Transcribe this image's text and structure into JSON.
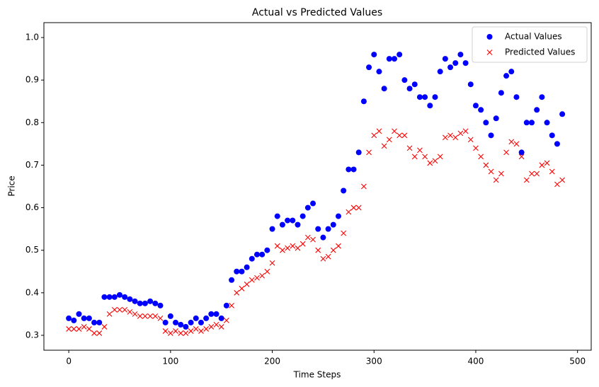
{
  "chart_data": {
    "type": "scatter",
    "title": "Actual vs Predicted Values",
    "x_label": "Time Steps",
    "y_label": "Price",
    "x": [
      0,
      5,
      10,
      15,
      20,
      25,
      30,
      35,
      40,
      45,
      50,
      55,
      60,
      65,
      70,
      75,
      80,
      85,
      90,
      95,
      100,
      105,
      110,
      115,
      120,
      125,
      130,
      135,
      140,
      145,
      150,
      155,
      160,
      165,
      170,
      175,
      180,
      185,
      190,
      195,
      200,
      205,
      210,
      215,
      220,
      225,
      230,
      235,
      240,
      245,
      250,
      255,
      260,
      265,
      270,
      275,
      280,
      285,
      290,
      295,
      300,
      305,
      310,
      315,
      320,
      325,
      330,
      335,
      340,
      345,
      350,
      355,
      360,
      365,
      370,
      375,
      380,
      385,
      390,
      395,
      400,
      405,
      410,
      415,
      420,
      425,
      430,
      435,
      440,
      445,
      450,
      455,
      460,
      465,
      470,
      475,
      480,
      485
    ],
    "series": [
      {
        "name": "Actual Values",
        "color": "#0000ff",
        "marker": "o",
        "values": [
          0.34,
          0.335,
          0.35,
          0.34,
          0.34,
          0.33,
          0.33,
          0.39,
          0.39,
          0.39,
          0.395,
          0.39,
          0.385,
          0.38,
          0.375,
          0.375,
          0.38,
          0.375,
          0.37,
          0.33,
          0.345,
          0.33,
          0.325,
          0.32,
          0.33,
          0.34,
          0.33,
          0.34,
          0.35,
          0.35,
          0.34,
          0.37,
          0.43,
          0.45,
          0.45,
          0.46,
          0.48,
          0.49,
          0.49,
          0.5,
          0.55,
          0.58,
          0.56,
          0.57,
          0.57,
          0.56,
          0.58,
          0.6,
          0.61,
          0.55,
          0.53,
          0.55,
          0.56,
          0.58,
          0.64,
          0.69,
          0.69,
          0.73,
          0.85,
          0.93,
          0.96,
          0.92,
          0.88,
          0.95,
          0.95,
          0.96,
          0.9,
          0.88,
          0.89,
          0.86,
          0.86,
          0.84,
          0.86,
          0.92,
          0.95,
          0.93,
          0.94,
          0.96,
          0.94,
          0.89,
          0.84,
          0.83,
          0.8,
          0.77,
          0.81,
          0.87,
          0.91,
          0.92,
          0.86,
          0.73,
          0.8,
          0.8,
          0.83,
          0.86,
          0.8,
          0.77,
          0.75,
          0.82
        ]
      },
      {
        "name": "Predicted Values",
        "color": "#ff0000",
        "marker": "x",
        "values": [
          0.315,
          0.315,
          0.315,
          0.32,
          0.315,
          0.305,
          0.305,
          0.32,
          0.35,
          0.36,
          0.36,
          0.36,
          0.355,
          0.35,
          0.345,
          0.345,
          0.345,
          0.345,
          0.34,
          0.31,
          0.305,
          0.31,
          0.305,
          0.305,
          0.31,
          0.315,
          0.31,
          0.315,
          0.32,
          0.325,
          0.32,
          0.335,
          0.37,
          0.4,
          0.41,
          0.42,
          0.43,
          0.435,
          0.44,
          0.45,
          0.47,
          0.51,
          0.5,
          0.505,
          0.51,
          0.505,
          0.515,
          0.53,
          0.525,
          0.5,
          0.48,
          0.485,
          0.5,
          0.51,
          0.54,
          0.59,
          0.6,
          0.6,
          0.65,
          0.73,
          0.77,
          0.78,
          0.745,
          0.76,
          0.78,
          0.77,
          0.77,
          0.74,
          0.72,
          0.735,
          0.72,
          0.705,
          0.71,
          0.72,
          0.765,
          0.77,
          0.765,
          0.775,
          0.78,
          0.76,
          0.74,
          0.72,
          0.7,
          0.685,
          0.665,
          0.68,
          0.73,
          0.755,
          0.75,
          0.72,
          0.665,
          0.68,
          0.68,
          0.7,
          0.705,
          0.685,
          0.655,
          0.665
        ]
      }
    ],
    "xlim": [
      -24.45,
      513.45
    ],
    "ylim": [
      0.265,
      1.035
    ],
    "xticks": [
      0,
      100,
      200,
      300,
      400,
      500
    ],
    "yticks": [
      0.3,
      0.4,
      0.5,
      0.6,
      0.7,
      0.8,
      0.9,
      {
        "value": 1,
        "label": "1.0"
      }
    ],
    "legend": "upper right"
  }
}
